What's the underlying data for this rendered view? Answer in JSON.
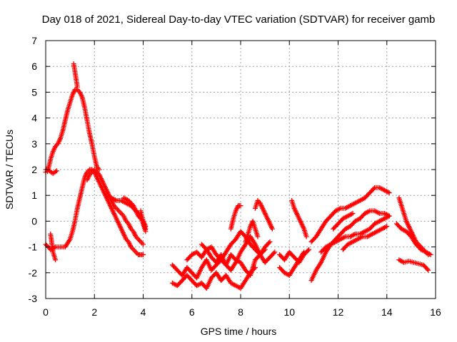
{
  "chart_data": {
    "type": "scatter",
    "title": "Day 018 of 2021, Sidereal Day-to-day VTEC variation (SDTVAR) for receiver gamb",
    "xlabel": "GPS time / hours",
    "ylabel": "SDTVAR / TECUs",
    "xlim": [
      0,
      16
    ],
    "ylim": [
      -3,
      7
    ],
    "xticks": [
      "0",
      "2",
      "4",
      "6",
      "8",
      "10",
      "12",
      "14",
      "16"
    ],
    "yticks": [
      "-3",
      "-2",
      "-1",
      "0",
      "1",
      "2",
      "3",
      "4",
      "5",
      "6",
      "7"
    ],
    "grid": true,
    "marker": "plus",
    "color": "#ff0000",
    "series": [
      {
        "x": [
          0.0,
          0.1,
          0.2,
          0.3,
          0.4,
          0.5,
          0.6,
          0.7,
          0.8,
          0.9,
          1.0,
          1.1,
          1.2,
          1.3,
          1.4,
          1.5,
          1.6,
          1.7,
          1.8,
          1.9,
          2.0,
          2.1,
          2.2
        ],
        "y": [
          2.0,
          2.0,
          2.4,
          2.7,
          2.9,
          3.0,
          3.2,
          3.5,
          3.9,
          4.3,
          4.6,
          4.9,
          5.1,
          5.1,
          5.0,
          4.8,
          4.4,
          3.9,
          3.4,
          3.0,
          2.5,
          2.1,
          2.0
        ]
      },
      {
        "x": [
          0.0,
          0.15,
          0.3,
          0.45
        ],
        "y": [
          1.9,
          1.95,
          1.85,
          1.95
        ]
      },
      {
        "x": [
          1.15,
          1.2,
          1.25,
          1.3
        ],
        "y": [
          6.1,
          5.8,
          5.5,
          5.2
        ]
      },
      {
        "x": [
          0.0,
          0.2,
          0.4,
          0.6,
          0.8,
          1.0,
          1.1,
          1.2,
          1.3,
          1.4,
          1.5,
          1.6,
          1.7,
          1.8,
          1.9,
          2.0,
          2.1,
          2.2,
          2.3,
          2.4,
          2.5,
          2.6,
          2.7,
          2.8,
          2.9,
          3.0,
          3.1,
          3.2,
          3.3,
          3.4,
          3.5,
          3.6,
          3.7,
          3.8,
          3.9,
          4.0
        ],
        "y": [
          -0.9,
          -1.1,
          -1.0,
          -1.0,
          -1.0,
          -0.7,
          -0.4,
          0.0,
          0.5,
          0.9,
          1.3,
          1.7,
          1.9,
          2.0,
          2.0,
          1.9,
          1.7,
          1.5,
          1.3,
          1.1,
          0.9,
          0.7,
          0.5,
          0.3,
          0.1,
          -0.1,
          -0.3,
          -0.5,
          -0.7,
          -0.8,
          -1.0,
          -1.1,
          -1.2,
          -1.3,
          -1.3,
          -1.3
        ]
      },
      {
        "x": [
          0.2,
          0.3,
          0.4
        ],
        "y": [
          -0.5,
          -1.2,
          -1.5
        ]
      },
      {
        "x": [
          1.7,
          1.8,
          1.9,
          2.0,
          2.1,
          2.2,
          2.3,
          2.4,
          2.5,
          2.6,
          2.7,
          2.8,
          2.9,
          3.0,
          3.1,
          3.2,
          3.3,
          3.4,
          3.5,
          3.6,
          3.7,
          3.8,
          3.9,
          4.0
        ],
        "y": [
          1.6,
          1.8,
          1.9,
          2.0,
          1.9,
          1.8,
          1.6,
          1.4,
          1.2,
          1.0,
          0.8,
          0.6,
          0.5,
          0.4,
          0.3,
          0.2,
          0.0,
          -0.1,
          -0.3,
          -0.4,
          -0.6,
          -0.7,
          -0.8,
          -0.9
        ]
      },
      {
        "x": [
          2.5,
          2.7,
          2.9,
          3.1,
          3.3,
          3.5,
          3.7,
          3.9,
          4.0,
          4.1
        ],
        "y": [
          1.0,
          0.9,
          0.8,
          0.8,
          0.7,
          0.6,
          0.4,
          0.2,
          -0.1,
          -0.4
        ]
      },
      {
        "x": [
          3.2,
          3.4,
          3.6,
          3.8,
          4.0,
          4.1
        ],
        "y": [
          0.9,
          0.8,
          0.6,
          0.2,
          0.0,
          -0.2
        ]
      },
      {
        "x": [
          3.9,
          3.95,
          4.0,
          4.05,
          4.1
        ],
        "y": [
          0.4,
          0.2,
          0.0,
          -0.2,
          -0.3
        ]
      },
      {
        "x": [
          5.2,
          5.4,
          5.6,
          5.8,
          6.0,
          6.2,
          6.4,
          6.6,
          6.8,
          7.0,
          7.2,
          7.4,
          7.6,
          7.8,
          8.0,
          8.2,
          8.4,
          8.6,
          8.8,
          9.0
        ],
        "y": [
          -1.7,
          -1.9,
          -2.1,
          -1.8,
          -2.0,
          -2.2,
          -1.8,
          -1.5,
          -1.9,
          -1.7,
          -1.5,
          -1.7,
          -1.3,
          -1.5,
          -1.6,
          -1.9,
          -2.1,
          -1.5,
          -1.3,
          -1.1
        ]
      },
      {
        "x": [
          5.2,
          5.4,
          5.6,
          5.8,
          6.0,
          6.2,
          6.4,
          6.6,
          6.8,
          7.0,
          7.2,
          7.4,
          7.6,
          7.8,
          8.0,
          8.2,
          8.4,
          8.6
        ],
        "y": [
          -2.4,
          -2.5,
          -2.3,
          -2.1,
          -2.3,
          -2.5,
          -2.4,
          -2.6,
          -2.2,
          -2.0,
          -2.3,
          -2.1,
          -2.4,
          -2.5,
          -2.6,
          -2.3,
          -2.0,
          -1.8
        ]
      },
      {
        "x": [
          5.8,
          6.0,
          6.2,
          6.4,
          6.6,
          6.8,
          7.0,
          7.2,
          7.4,
          7.6,
          7.8,
          8.0,
          8.2,
          8.4,
          8.6,
          8.8,
          9.0,
          9.2
        ],
        "y": [
          -1.5,
          -1.3,
          -1.2,
          -1.4,
          -1.1,
          -1.0,
          -1.3,
          -1.5,
          -1.2,
          -0.9,
          -0.7,
          -0.4,
          -0.6,
          -0.9,
          -1.1,
          -1.3,
          -1.0,
          -0.8
        ]
      },
      {
        "x": [
          6.4,
          6.6,
          6.8,
          7.0,
          7.2,
          7.4,
          7.6,
          7.8,
          8.0,
          8.2,
          8.4,
          8.6,
          8.8,
          9.0,
          9.2,
          9.4
        ],
        "y": [
          -0.9,
          -1.1,
          -1.4,
          -1.6,
          -1.3,
          -1.7,
          -1.9,
          -1.6,
          -1.2,
          -0.9,
          -0.6,
          -0.9,
          -1.3,
          -1.6,
          -1.4,
          -1.2
        ]
      },
      {
        "x": [
          7.6,
          7.7,
          7.8,
          7.9,
          8.0
        ],
        "y": [
          -0.3,
          0.1,
          0.4,
          0.6,
          0.6
        ]
      },
      {
        "x": [
          8.6,
          8.7,
          8.8,
          8.9,
          9.0,
          9.1,
          9.2,
          9.3
        ],
        "y": [
          0.5,
          0.8,
          0.7,
          0.5,
          0.3,
          0.1,
          -0.1,
          -0.3
        ]
      },
      {
        "x": [
          8.2,
          8.3,
          8.4,
          8.5,
          8.6,
          8.7
        ],
        "y": [
          -0.8,
          -0.5,
          -0.2,
          0.0,
          -0.3,
          -0.6
        ]
      },
      {
        "x": [
          9.6,
          9.8,
          10.0,
          10.2,
          10.4,
          10.6,
          10.8
        ],
        "y": [
          -1.3,
          -1.5,
          -1.2,
          -1.4,
          -1.6,
          -1.3,
          -1.1
        ]
      },
      {
        "x": [
          9.6,
          9.8,
          10.0,
          10.2,
          10.4,
          10.6
        ],
        "y": [
          -1.8,
          -2.0,
          -2.1,
          -1.8,
          -1.5,
          -1.2
        ]
      },
      {
        "x": [
          10.1,
          10.2,
          10.3,
          10.4,
          10.5,
          10.6,
          10.7
        ],
        "y": [
          0.8,
          0.5,
          0.3,
          0.1,
          -0.1,
          -0.3,
          -0.6
        ]
      },
      {
        "x": [
          10.9,
          11.1,
          11.3,
          11.5,
          11.7,
          11.9,
          12.1,
          12.3,
          12.5,
          12.7,
          12.9,
          13.1,
          13.3,
          13.5,
          13.7,
          13.9,
          14.1
        ],
        "y": [
          -0.8,
          -0.6,
          -0.3,
          0.0,
          0.2,
          0.4,
          0.5,
          0.5,
          0.6,
          0.7,
          0.8,
          0.9,
          1.1,
          1.3,
          1.3,
          1.2,
          1.1
        ]
      },
      {
        "x": [
          10.9,
          11.1,
          11.3,
          11.5,
          11.7,
          11.9,
          12.1,
          12.3,
          12.5,
          12.7,
          12.9,
          13.1,
          13.3,
          13.5,
          13.7,
          13.9,
          14.1
        ],
        "y": [
          -2.3,
          -1.9,
          -1.6,
          -1.2,
          -0.9,
          -0.7,
          -0.5,
          -0.3,
          -0.2,
          0.0,
          0.1,
          0.3,
          0.4,
          0.4,
          0.3,
          0.3,
          0.2
        ]
      },
      {
        "x": [
          11.3,
          11.5,
          11.7,
          11.9,
          12.1,
          12.3,
          12.5,
          12.7,
          12.9,
          13.1,
          13.3,
          13.5,
          13.7,
          13.9,
          14.1
        ],
        "y": [
          -1.2,
          -1.0,
          -0.9,
          -0.8,
          -0.7,
          -0.6,
          -0.6,
          -0.5,
          -0.5,
          -0.4,
          -0.3,
          -0.1,
          0.0,
          0.1,
          0.2
        ]
      },
      {
        "x": [
          12.2,
          12.4,
          12.6,
          12.8,
          13.0,
          13.2,
          13.4,
          13.6,
          13.8,
          14.0
        ],
        "y": [
          -1.1,
          -0.9,
          -0.8,
          -0.7,
          -0.6,
          -0.6,
          -0.5,
          -0.4,
          -0.3,
          -0.2
        ]
      },
      {
        "x": [
          11.8,
          12.0,
          12.2,
          12.4,
          12.6
        ],
        "y": [
          -0.3,
          -0.1,
          0.1,
          0.2,
          0.3
        ]
      },
      {
        "x": [
          14.5,
          14.6,
          14.7,
          14.8,
          14.9,
          15.0,
          15.1,
          15.2,
          15.3,
          15.4,
          15.5,
          15.6,
          15.7
        ],
        "y": [
          0.9,
          0.6,
          0.3,
          0.0,
          -0.2,
          -0.4,
          -0.6,
          -0.8,
          -0.9,
          -1.0,
          -1.1,
          -1.2,
          -1.3
        ]
      },
      {
        "x": [
          14.4,
          14.6,
          14.8,
          15.0,
          15.2,
          15.4,
          15.6,
          15.8
        ],
        "y": [
          -0.1,
          -0.3,
          -0.4,
          -0.6,
          -0.9,
          -1.1,
          -1.2,
          -1.3
        ]
      },
      {
        "x": [
          14.5,
          14.7,
          14.9,
          15.1,
          15.3,
          15.5,
          15.7
        ],
        "y": [
          -1.5,
          -1.6,
          -1.55,
          -1.6,
          -1.65,
          -1.7,
          -1.9
        ]
      }
    ]
  }
}
